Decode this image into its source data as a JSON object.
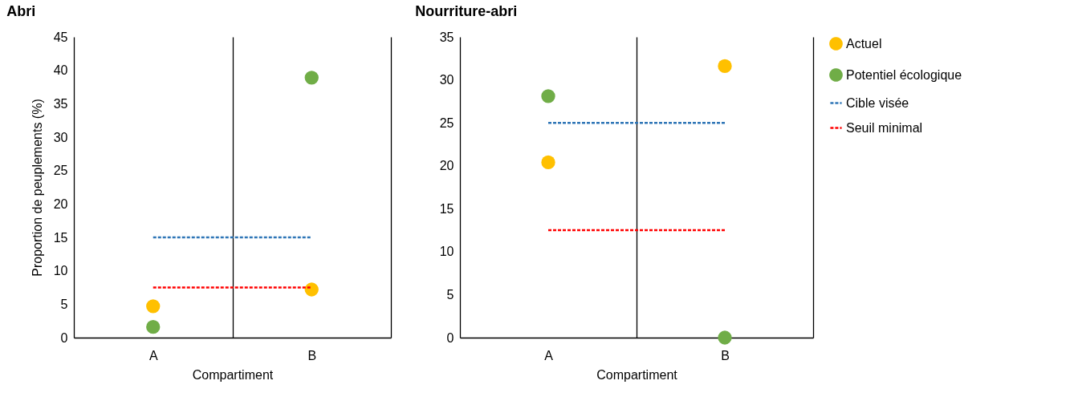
{
  "chart_data": [
    {
      "type": "scatter",
      "title": "Abri",
      "xlabel": "Compartiment",
      "ylabel": "Proportion de peuplements (%)",
      "categories": [
        "A",
        "B"
      ],
      "ylim": [
        0,
        45
      ],
      "yticks": [
        0,
        5,
        10,
        15,
        20,
        25,
        30,
        35,
        40,
        45
      ],
      "grid": "x",
      "legend": false,
      "series": [
        {
          "color": "#ffc000",
          "marker": "circle",
          "values": [
            4.7,
            7.2
          ]
        },
        {
          "color": "#70ad47",
          "marker": "circle",
          "values": [
            1.6,
            38.9
          ]
        },
        {
          "type": "line",
          "color": "#2e75b6",
          "line_style": "dashed",
          "marker": "none",
          "values": [
            15,
            15
          ]
        },
        {
          "type": "line",
          "color": "#ff0000",
          "line_style": "dashed",
          "marker": "none",
          "values": [
            7.5,
            7.5
          ]
        }
      ]
    },
    {
      "type": "scatter",
      "title": "Nourriture-abri",
      "xlabel": "Compartiment",
      "categories": [
        "A",
        "B"
      ],
      "ylim": [
        0,
        35
      ],
      "yticks": [
        0,
        5,
        10,
        15,
        20,
        25,
        30,
        35
      ],
      "grid": "x",
      "legend": "right",
      "series": [
        {
          "name": "Actuel",
          "color": "#ffc000",
          "marker": "circle",
          "values": [
            20.4,
            31.6
          ]
        },
        {
          "name": "Potentiel écologique",
          "color": "#70ad47",
          "marker": "circle",
          "values": [
            28.1,
            0
          ]
        },
        {
          "type": "line",
          "name": "Cible visée",
          "color": "#2e75b6",
          "line_style": "dashed",
          "marker": "none",
          "values": [
            25,
            25
          ]
        },
        {
          "type": "line",
          "name": "Seuil minimal",
          "color": "#ff0000",
          "line_style": "dashed",
          "marker": "none",
          "values": [
            12.5,
            12.5
          ]
        }
      ]
    }
  ]
}
